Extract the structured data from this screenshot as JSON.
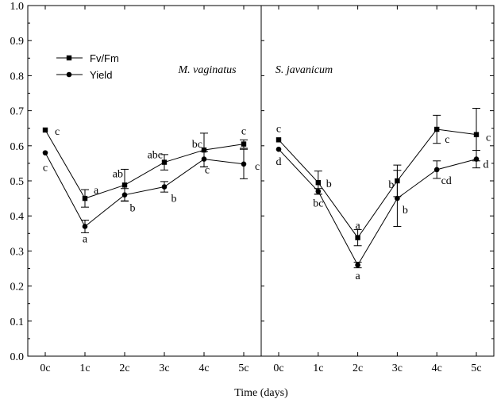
{
  "chart_data": {
    "type": "line",
    "xlabel": "Time (days)",
    "categories": [
      "0c",
      "1c",
      "2c",
      "3c",
      "4c",
      "5c"
    ],
    "ylim": [
      0,
      1.0
    ],
    "yticks": [
      "0.0",
      "0.1",
      "0.2",
      "0.3",
      "0.4",
      "0.5",
      "0.6",
      "0.7",
      "0.8",
      "0.9",
      "1.0"
    ],
    "legend": {
      "placement": "top-left",
      "entries": [
        {
          "name": "Fv/Fm",
          "marker": "square"
        },
        {
          "name": "Yield",
          "marker": "circle"
        }
      ]
    },
    "panels": [
      {
        "title": "M. vaginatus",
        "series": [
          {
            "name": "Fv/Fm",
            "marker": "square",
            "values": [
              0.645,
              0.45,
              0.488,
              0.553,
              0.588,
              0.605
            ],
            "errors": [
              0.0,
              0.025,
              0.045,
              0.022,
              0.048,
              0.012
            ],
            "labels": [
              "c",
              "a",
              "ab",
              "abc",
              "bc",
              "c"
            ]
          },
          {
            "name": "Yield",
            "marker": "circle",
            "values": [
              0.58,
              0.37,
              0.46,
              0.483,
              0.562,
              0.548
            ],
            "errors": [
              0.0,
              0.018,
              0.018,
              0.015,
              0.022,
              0.042
            ],
            "labels": [
              "c",
              "a",
              "b",
              "b",
              "c",
              "c"
            ]
          }
        ]
      },
      {
        "title": "S. javanicum",
        "series": [
          {
            "name": "Fv/Fm",
            "marker": "square",
            "values": [
              0.617,
              0.495,
              0.338,
              0.5,
              0.647,
              0.632
            ],
            "errors": [
              0.0,
              0.033,
              0.023,
              0.045,
              0.04,
              0.075
            ],
            "labels": [
              "c",
              "b",
              "a",
              "b",
              "c",
              "c"
            ]
          },
          {
            "name": "Yield",
            "marker": "circle",
            "values": [
              0.59,
              0.47,
              0.26,
              0.45,
              0.532,
              0.562
            ],
            "errors": [
              0.0,
              0.008,
              0.008,
              0.08,
              0.025,
              0.025
            ],
            "labels": [
              "d",
              "bc",
              "a",
              "b",
              "cd",
              "d"
            ]
          }
        ]
      }
    ]
  }
}
